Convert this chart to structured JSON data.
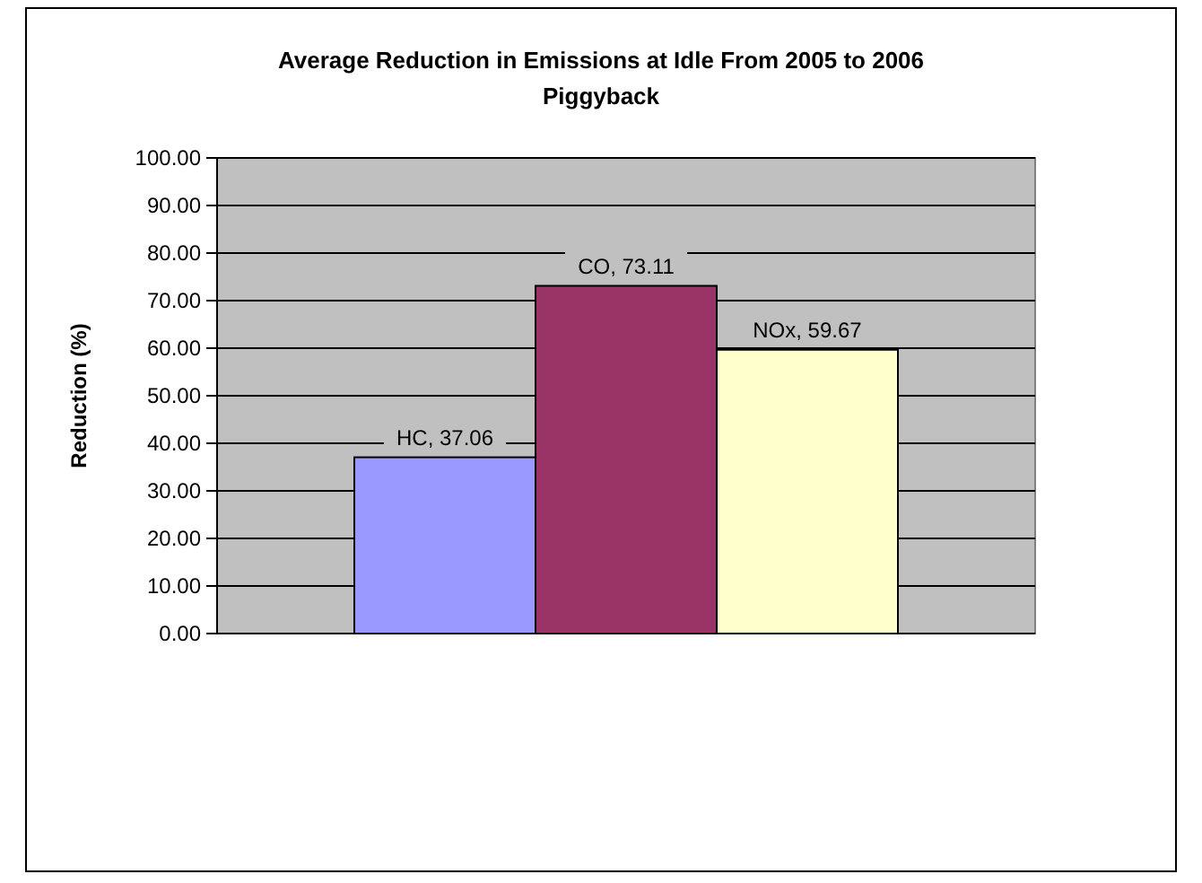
{
  "chart_data": {
    "type": "bar",
    "title": "Average Reduction in Emissions at Idle From 2005 to 2006",
    "subtitle": "Piggyback",
    "ylabel": "Reduction (%)",
    "categories": [
      null,
      null,
      null
    ],
    "values": [
      37.06,
      73.11,
      59.67
    ],
    "colors": [
      "#9999ff",
      "#993366",
      "#ffffcc"
    ],
    "value_labels": [
      "HC, 37.06",
      "CO, 73.11",
      "NOx, 59.67"
    ],
    "ylim": [
      0,
      100
    ],
    "yticks": [
      {
        "value": 0,
        "label": "0.00"
      },
      {
        "value": 10,
        "label": "10.00"
      },
      {
        "value": 20,
        "label": "20.00"
      },
      {
        "value": 30,
        "label": "30.00"
      },
      {
        "value": 40,
        "label": "40.00"
      },
      {
        "value": 50,
        "label": "50.00"
      },
      {
        "value": 60,
        "label": "60.00"
      },
      {
        "value": 70,
        "label": "70.00"
      },
      {
        "value": 80,
        "label": "80.00"
      },
      {
        "value": 90,
        "label": "90.00"
      },
      {
        "value": 100,
        "label": "100.00"
      }
    ],
    "grid": "y",
    "tick_labels": "y"
  }
}
